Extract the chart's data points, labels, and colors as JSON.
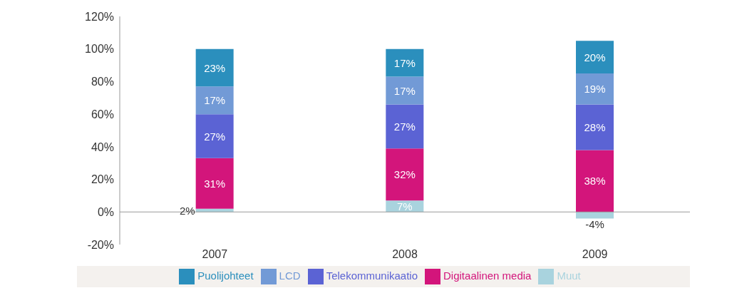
{
  "chart_data": {
    "type": "bar",
    "stacked": true,
    "categories": [
      "2007",
      "2008",
      "2009"
    ],
    "series": [
      {
        "name": "Muut",
        "color": "#a9d3de",
        "values": [
          2,
          7,
          -4
        ],
        "value_labels": [
          "2%",
          "7%",
          "-4%"
        ]
      },
      {
        "name": "Digitaalinen media",
        "color": "#d3157b",
        "values": [
          31,
          32,
          38
        ],
        "value_labels": [
          "31%",
          "32%",
          "38%"
        ]
      },
      {
        "name": "Telekommunikaatio",
        "color": "#5b63d4",
        "values": [
          27,
          27,
          28
        ],
        "value_labels": [
          "27%",
          "27%",
          "28%"
        ]
      },
      {
        "name": "LCD",
        "color": "#729ad6",
        "values": [
          17,
          17,
          19
        ],
        "value_labels": [
          "17%",
          "17%",
          "19%"
        ]
      },
      {
        "name": "Puolijohteet",
        "color": "#2b8fbd",
        "values": [
          23,
          17,
          20
        ],
        "value_labels": [
          "23%",
          "17%",
          "20%"
        ]
      }
    ],
    "ylim": [
      -20,
      120
    ],
    "yticks": [
      {
        "value": -20,
        "label": "-20%"
      },
      {
        "value": 0,
        "label": "0%"
      },
      {
        "value": 20,
        "label": "20%"
      },
      {
        "value": 40,
        "label": "40%"
      },
      {
        "value": 60,
        "label": "60%"
      },
      {
        "value": 80,
        "label": "80%"
      },
      {
        "value": 100,
        "label": "100%"
      },
      {
        "value": 120,
        "label": "120%"
      }
    ],
    "ref_lines": [
      {
        "axis": "y",
        "value": 0,
        "color": "#999999"
      }
    ],
    "legend": "bottom"
  }
}
